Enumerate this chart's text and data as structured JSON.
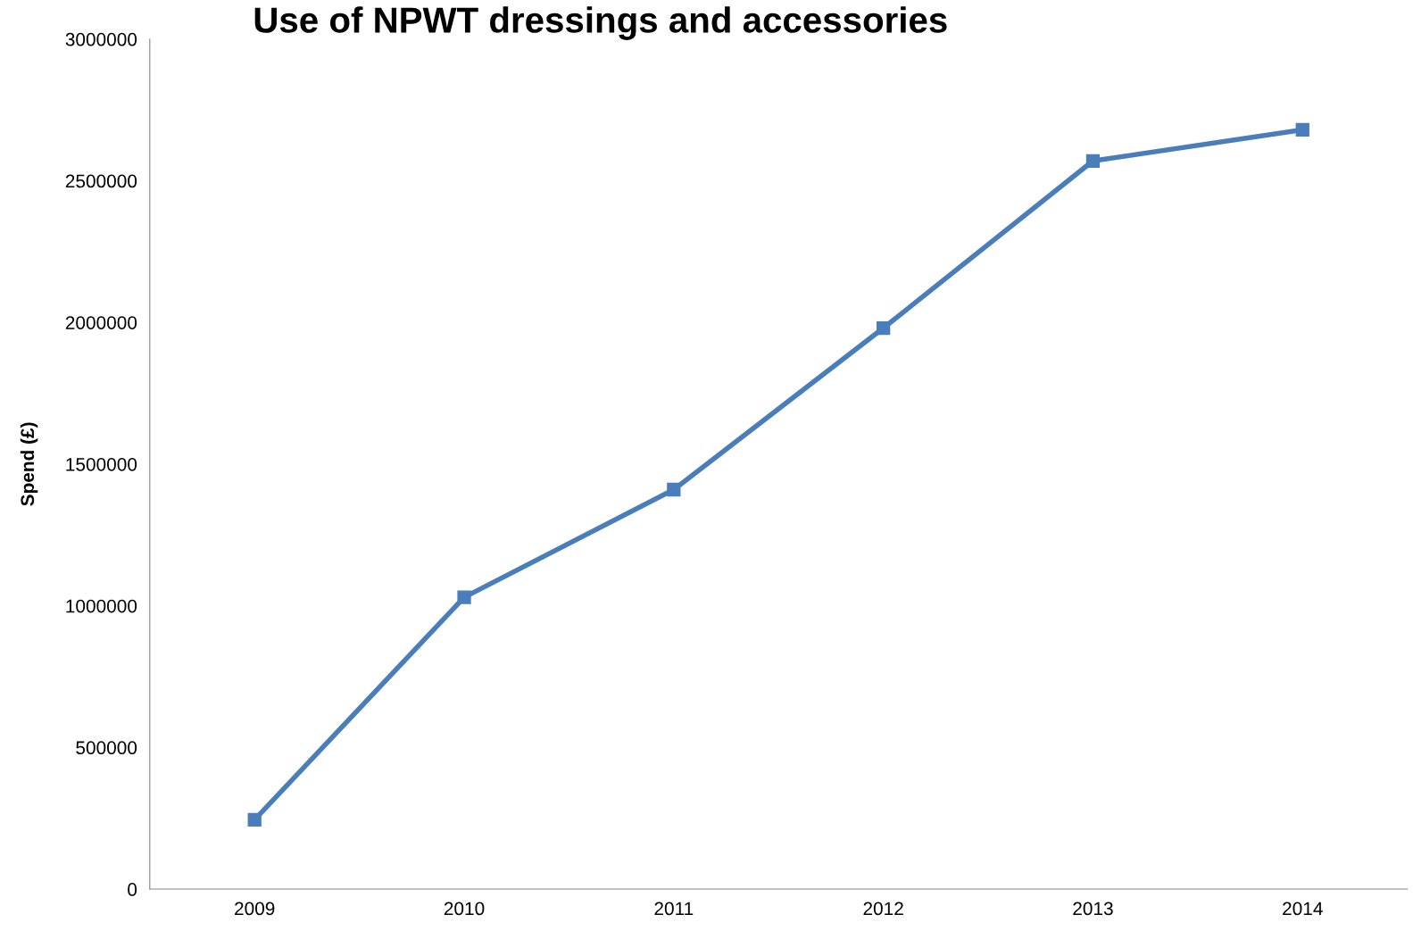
{
  "chart_data": {
    "type": "line",
    "title": "Use of NPWT dressings and accessories",
    "ylabel": "Spend (£)",
    "categories": [
      "2009",
      "2010",
      "2011",
      "2012",
      "2013",
      "2014"
    ],
    "series": [
      {
        "color": "#4a7ebb",
        "values": [
          245000,
          1030000,
          1410000,
          1980000,
          2570000,
          2680000
        ]
      }
    ],
    "ylim": [
      0,
      3000000
    ],
    "yticks": [
      0,
      500000,
      1000000,
      1500000,
      2000000,
      2500000,
      3000000
    ],
    "grid": false,
    "marker": "square",
    "line_style": "solid"
  }
}
